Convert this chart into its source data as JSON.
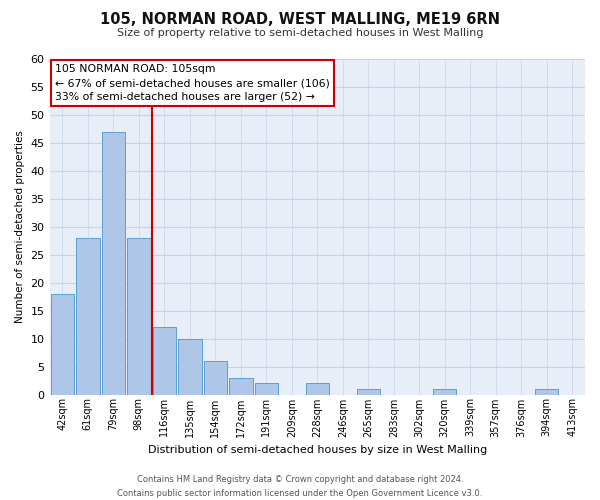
{
  "title": "105, NORMAN ROAD, WEST MALLING, ME19 6RN",
  "subtitle": "Size of property relative to semi-detached houses in West Malling",
  "xlabel": "Distribution of semi-detached houses by size in West Malling",
  "ylabel": "Number of semi-detached properties",
  "bar_labels": [
    "42sqm",
    "61sqm",
    "79sqm",
    "98sqm",
    "116sqm",
    "135sqm",
    "154sqm",
    "172sqm",
    "191sqm",
    "209sqm",
    "228sqm",
    "246sqm",
    "265sqm",
    "283sqm",
    "302sqm",
    "320sqm",
    "339sqm",
    "357sqm",
    "376sqm",
    "394sqm",
    "413sqm"
  ],
  "bar_values": [
    18,
    28,
    47,
    28,
    12,
    10,
    6,
    3,
    2,
    0,
    2,
    0,
    1,
    0,
    0,
    1,
    0,
    0,
    0,
    1,
    0
  ],
  "bar_color": "#aec6e8",
  "bar_edge_color": "#5a9fd4",
  "ylim": [
    0,
    60
  ],
  "yticks": [
    0,
    5,
    10,
    15,
    20,
    25,
    30,
    35,
    40,
    45,
    50,
    55,
    60
  ],
  "vline_x": 3.5,
  "vline_color": "#cc0000",
  "annotation_title": "105 NORMAN ROAD: 105sqm",
  "annotation_line1": "← 67% of semi-detached houses are smaller (106)",
  "annotation_line2": "33% of semi-detached houses are larger (52) →",
  "annotation_box_color": "#ffffff",
  "annotation_box_edge": "#cc0000",
  "footer1": "Contains HM Land Registry data © Crown copyright and database right 2024.",
  "footer2": "Contains public sector information licensed under the Open Government Licence v3.0.",
  "bg_color": "#e8eef8",
  "grid_color": "#c8d4e8"
}
